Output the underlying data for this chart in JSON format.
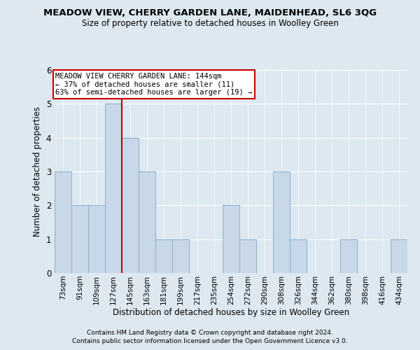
{
  "title": "MEADOW VIEW, CHERRY GARDEN LANE, MAIDENHEAD, SL6 3QG",
  "subtitle": "Size of property relative to detached houses in Woolley Green",
  "xlabel": "Distribution of detached houses by size in Woolley Green",
  "ylabel": "Number of detached properties",
  "bin_labels": [
    "73sqm",
    "91sqm",
    "109sqm",
    "127sqm",
    "145sqm",
    "163sqm",
    "181sqm",
    "199sqm",
    "217sqm",
    "235sqm",
    "254sqm",
    "272sqm",
    "290sqm",
    "308sqm",
    "326sqm",
    "344sqm",
    "362sqm",
    "380sqm",
    "398sqm",
    "416sqm",
    "434sqm"
  ],
  "bar_values": [
    3,
    2,
    2,
    5,
    4,
    3,
    1,
    1,
    0,
    0,
    2,
    1,
    0,
    3,
    1,
    0,
    0,
    1,
    0,
    0,
    1
  ],
  "bar_color": "#c8d8e8",
  "bar_edgecolor": "#8ab0cc",
  "red_line_index": 3.5,
  "red_line_color": "#cc0000",
  "ylim": [
    0,
    6
  ],
  "yticks": [
    0,
    1,
    2,
    3,
    4,
    5,
    6
  ],
  "annotation_line1": "MEADOW VIEW CHERRY GARDEN LANE: 144sqm",
  "annotation_line2": "← 37% of detached houses are smaller (11)",
  "annotation_line3": "63% of semi-detached houses are larger (19) →",
  "annotation_box_facecolor": "#ffffff",
  "annotation_border_color": "#cc0000",
  "footer_line1": "Contains HM Land Registry data © Crown copyright and database right 2024.",
  "footer_line2": "Contains public sector information licensed under the Open Government Licence v3.0.",
  "background_color": "#dde8f0",
  "grid_color": "#ffffff"
}
